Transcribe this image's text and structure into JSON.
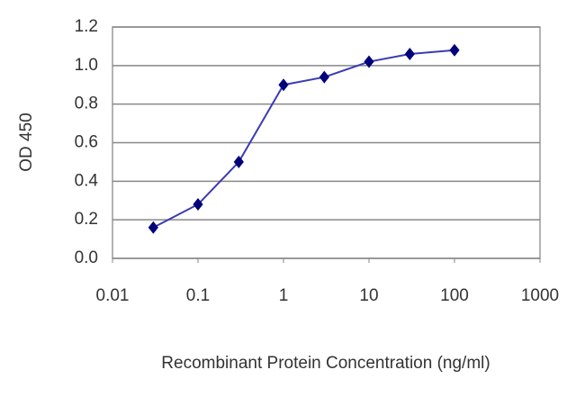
{
  "chart_data": {
    "type": "line",
    "x_label": "Recombinant Protein Concentration (ng/ml)",
    "y_label": "OD 450",
    "x": [
      0.03,
      0.1,
      0.3,
      1,
      3,
      10,
      30,
      100
    ],
    "values": [
      0.16,
      0.28,
      0.5,
      0.9,
      0.94,
      1.02,
      1.06,
      1.08
    ],
    "color": "#3b3bb3",
    "marker_color": "#00007a",
    "xscale": "log",
    "xlim": [
      0.01,
      1000
    ],
    "xticks": [
      0.01,
      0.1,
      1,
      10,
      100,
      1000
    ],
    "ylim": [
      0,
      1.2
    ],
    "yticks": [
      {
        "value": 0,
        "label": "0.0"
      },
      0.2,
      0.4,
      0.6,
      0.8,
      {
        "value": 1,
        "label": "1.0"
      },
      1.2
    ],
    "grid": true
  }
}
